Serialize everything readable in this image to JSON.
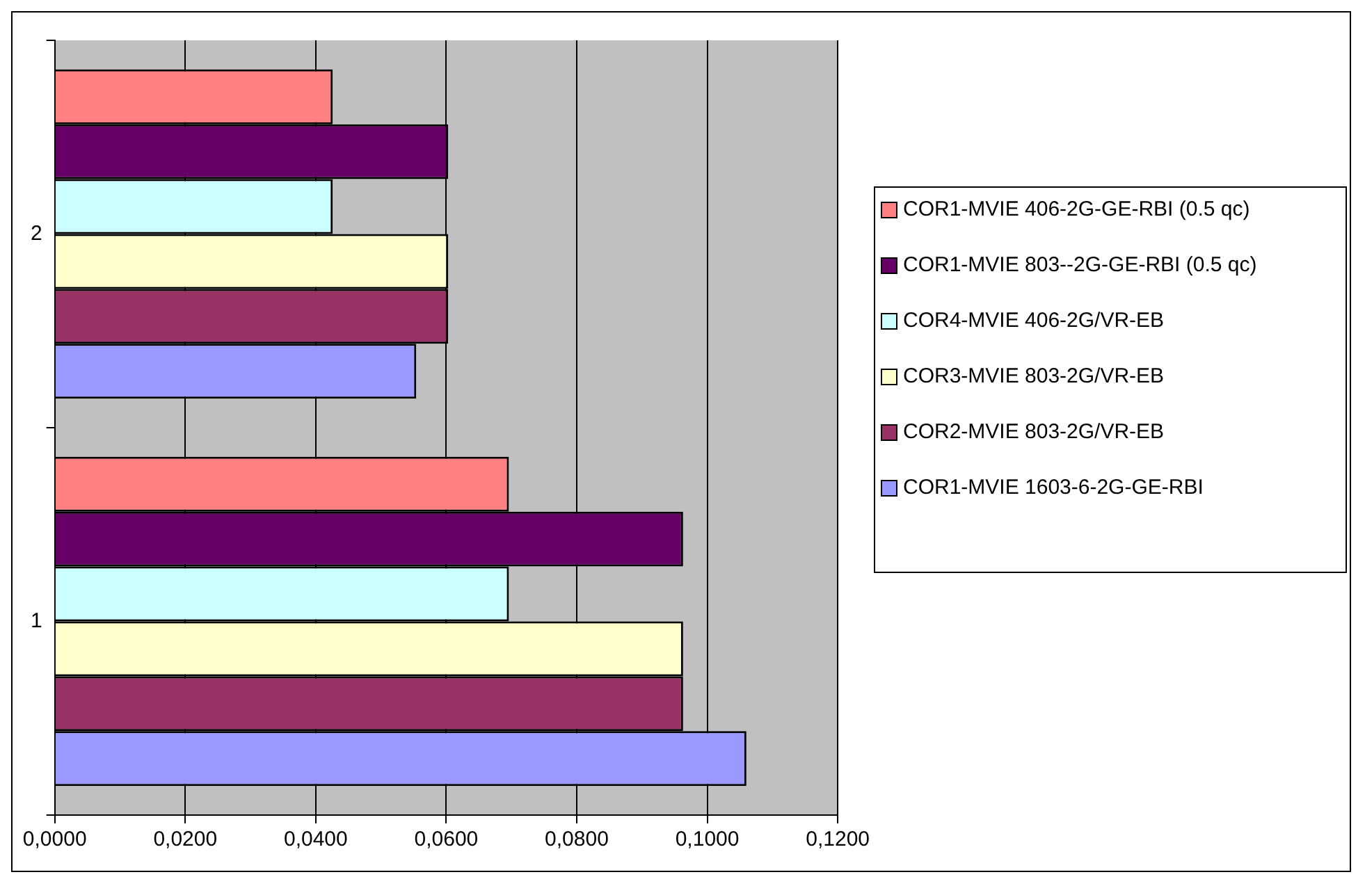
{
  "chart_data": {
    "type": "bar",
    "orientation": "horizontal",
    "categories": [
      "2",
      "1"
    ],
    "series": [
      {
        "name": "COR1-MVIE 406-2G-GE-RBI (0.5 qc)",
        "color": "#ff8080",
        "values": [
          0.0426,
          0.0696
        ]
      },
      {
        "name": "COR1-MVIE 803--2G-GE-RBI (0.5 qc)",
        "color": "#660066",
        "values": [
          0.0603,
          0.0963
        ]
      },
      {
        "name": "COR4-MVIE 406-2G/VR-EB",
        "color": "#ccffff",
        "values": [
          0.0426,
          0.0696
        ]
      },
      {
        "name": "COR3-MVIE 803-2G/VR-EB",
        "color": "#ffffcc",
        "values": [
          0.0603,
          0.0963
        ]
      },
      {
        "name": "COR2-MVIE 803-2G/VR-EB",
        "color": "#993366",
        "values": [
          0.0603,
          0.0963
        ]
      },
      {
        "name": "COR1-MVIE 1603-6-2G-GE-RBI",
        "color": "#9999ff",
        "values": [
          0.0554,
          0.106
        ]
      }
    ],
    "xlim": [
      0,
      0.12
    ],
    "xticks": [
      {
        "value": 0,
        "label": "0,0000"
      },
      {
        "value": 0.02,
        "label": "0,0200"
      },
      {
        "value": 0.04,
        "label": "0,0400"
      },
      {
        "value": 0.06,
        "label": "0,0600"
      },
      {
        "value": 0.08,
        "label": "0,0800"
      },
      {
        "value": 0.1,
        "label": "0,1000"
      },
      {
        "value": 0.12,
        "label": "0,1200"
      }
    ],
    "grid": "x",
    "legend": "right"
  }
}
